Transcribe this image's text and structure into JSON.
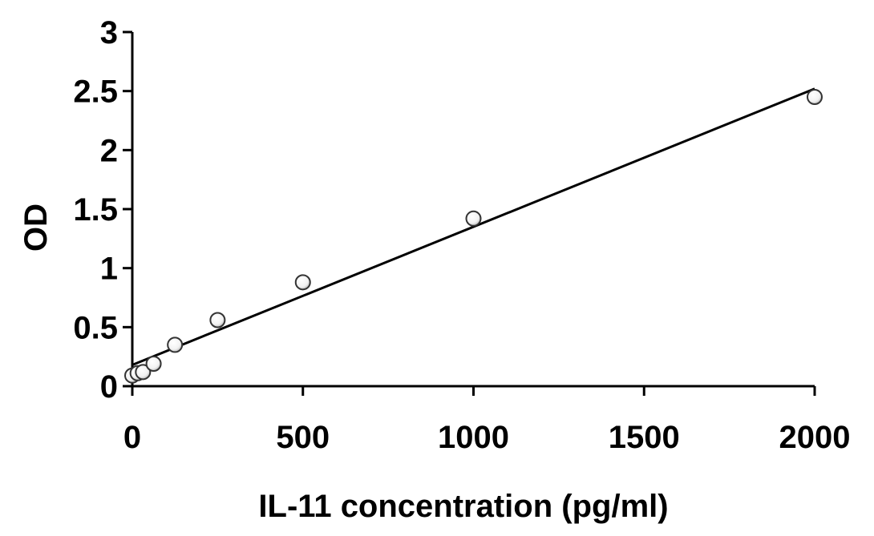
{
  "chart_data": {
    "type": "scatter",
    "title": "",
    "xlabel": "IL-11 concentration (pg/ml)",
    "ylabel": "OD",
    "xlim": [
      0,
      2000
    ],
    "ylim": [
      0,
      3
    ],
    "xticks": [
      0,
      500,
      1000,
      1500,
      2000
    ],
    "yticks": [
      0,
      0.5,
      1,
      1.5,
      2,
      2.5,
      3
    ],
    "ytick_labels": [
      "0",
      "0.5",
      "1",
      "1.5",
      "2",
      "2.5",
      "3"
    ],
    "grid": false,
    "legend": "none",
    "points": [
      {
        "x": 0,
        "y": 0.09
      },
      {
        "x": 15.6,
        "y": 0.11
      },
      {
        "x": 31.3,
        "y": 0.12
      },
      {
        "x": 62.5,
        "y": 0.19
      },
      {
        "x": 125,
        "y": 0.35
      },
      {
        "x": 250,
        "y": 0.56
      },
      {
        "x": 500,
        "y": 0.88
      },
      {
        "x": 1000,
        "y": 1.42
      },
      {
        "x": 2000,
        "y": 2.45
      }
    ],
    "fit_line": {
      "x": [
        0,
        2000
      ],
      "y": [
        0.18,
        2.52
      ]
    },
    "colors": {
      "axis": "#000000",
      "marker_edge": "#333333",
      "marker_fill": "#ffffff",
      "line": "#000000"
    }
  }
}
